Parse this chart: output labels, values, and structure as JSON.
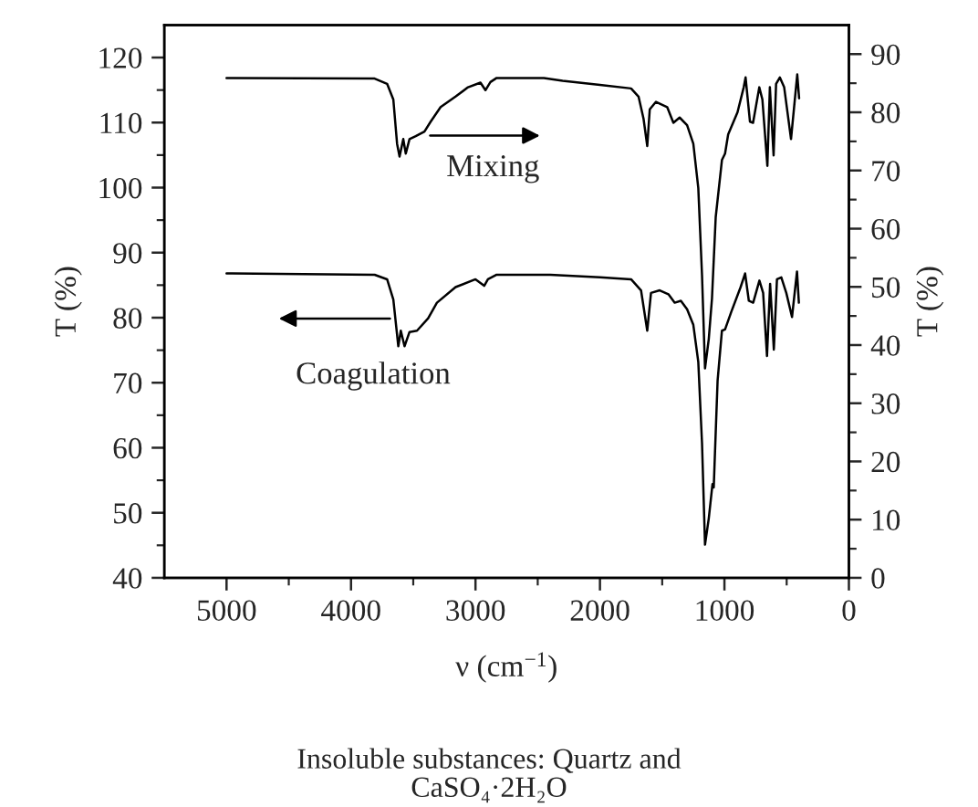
{
  "chart_data": {
    "type": "line",
    "xlabel": "ν (cm$^{−1}$)",
    "ylabel": "T (%)",
    "y2label": "T (%)",
    "annotations": [
      "Mixing",
      "Coagulation",
      "Insoluble substances: Quartz and\nCaSO₄·2H₂O"
    ],
    "xlim": [
      5500,
      0
    ],
    "xticks": [
      5000,
      4000,
      3000,
      2000,
      1000,
      0
    ],
    "ylim": [
      40,
      125
    ],
    "yticks": [
      40,
      50,
      60,
      70,
      80,
      90,
      100,
      110,
      120
    ],
    "y2lim": [
      0,
      95
    ],
    "y2ticks": [
      0,
      10,
      20,
      30,
      40,
      50,
      60,
      70,
      80,
      90
    ],
    "series": [
      {
        "axis": "y2",
        "color": "#000000",
        "x": [
          5000,
          3810,
          3710,
          3660,
          3630,
          3610,
          3580,
          3560,
          3530,
          3480,
          3410,
          3360,
          3280,
          3160,
          3060,
          2960,
          2920,
          2880,
          2830,
          2450,
          2300,
          2000,
          1750,
          1690,
          1650,
          1620,
          1600,
          1550,
          1460,
          1410,
          1360,
          1300,
          1250,
          1210,
          1180,
          1156,
          1126,
          1100,
          1070,
          1020,
          995,
          970,
          895,
          845,
          830,
          795,
          770,
          720,
          695,
          655,
          635,
          605,
          585,
          555,
          520,
          465,
          415,
          400
        ],
        "values": [
          85.9,
          85.8,
          84.9,
          82.2,
          74.6,
          72.4,
          75.4,
          72.9,
          75.4,
          75.9,
          76.7,
          78.4,
          80.9,
          82.7,
          84.3,
          85.1,
          83.8,
          85.2,
          85.9,
          85.9,
          85.4,
          84.7,
          84.1,
          82.7,
          78.9,
          74.2,
          80.5,
          81.8,
          80.9,
          78.2,
          79.1,
          77.8,
          74.6,
          67.0,
          52.0,
          36.0,
          41.0,
          48.0,
          62.0,
          71.8,
          72.9,
          76.2,
          80.0,
          84.3,
          86.0,
          78.4,
          78.2,
          84.3,
          82.2,
          70.8,
          84.3,
          72.6,
          84.9,
          86.0,
          84.3,
          75.4,
          86.5,
          82.4
        ]
      },
      {
        "axis": "y",
        "color": "#000000",
        "x": [
          5000,
          3810,
          3710,
          3660,
          3620,
          3600,
          3570,
          3530,
          3470,
          3380,
          3310,
          3160,
          3000,
          2930,
          2900,
          2830,
          2400,
          2000,
          1750,
          1670,
          1620,
          1590,
          1520,
          1450,
          1400,
          1350,
          1300,
          1250,
          1210,
          1180,
          1156,
          1126,
          1096,
          1086,
          1055,
          1020,
          995,
          945,
          870,
          834,
          804,
          769,
          719,
          689,
          658,
          633,
          603,
          578,
          543,
          503,
          457,
          417,
          402
        ],
        "values": [
          86.8,
          86.6,
          85.9,
          82.8,
          75.6,
          78.0,
          75.6,
          77.8,
          78.0,
          79.9,
          82.3,
          84.7,
          85.9,
          84.9,
          85.9,
          86.6,
          86.6,
          86.2,
          85.9,
          84.2,
          78.0,
          83.8,
          84.2,
          83.6,
          82.3,
          82.6,
          81.3,
          78.9,
          73.2,
          60.7,
          45.1,
          49.1,
          54.4,
          53.9,
          70.3,
          78.0,
          78.2,
          80.9,
          84.7,
          86.8,
          82.6,
          82.3,
          85.7,
          83.8,
          74.1,
          85.2,
          75.1,
          85.9,
          86.2,
          83.8,
          80.1,
          87.1,
          82.3
        ]
      }
    ]
  }
}
